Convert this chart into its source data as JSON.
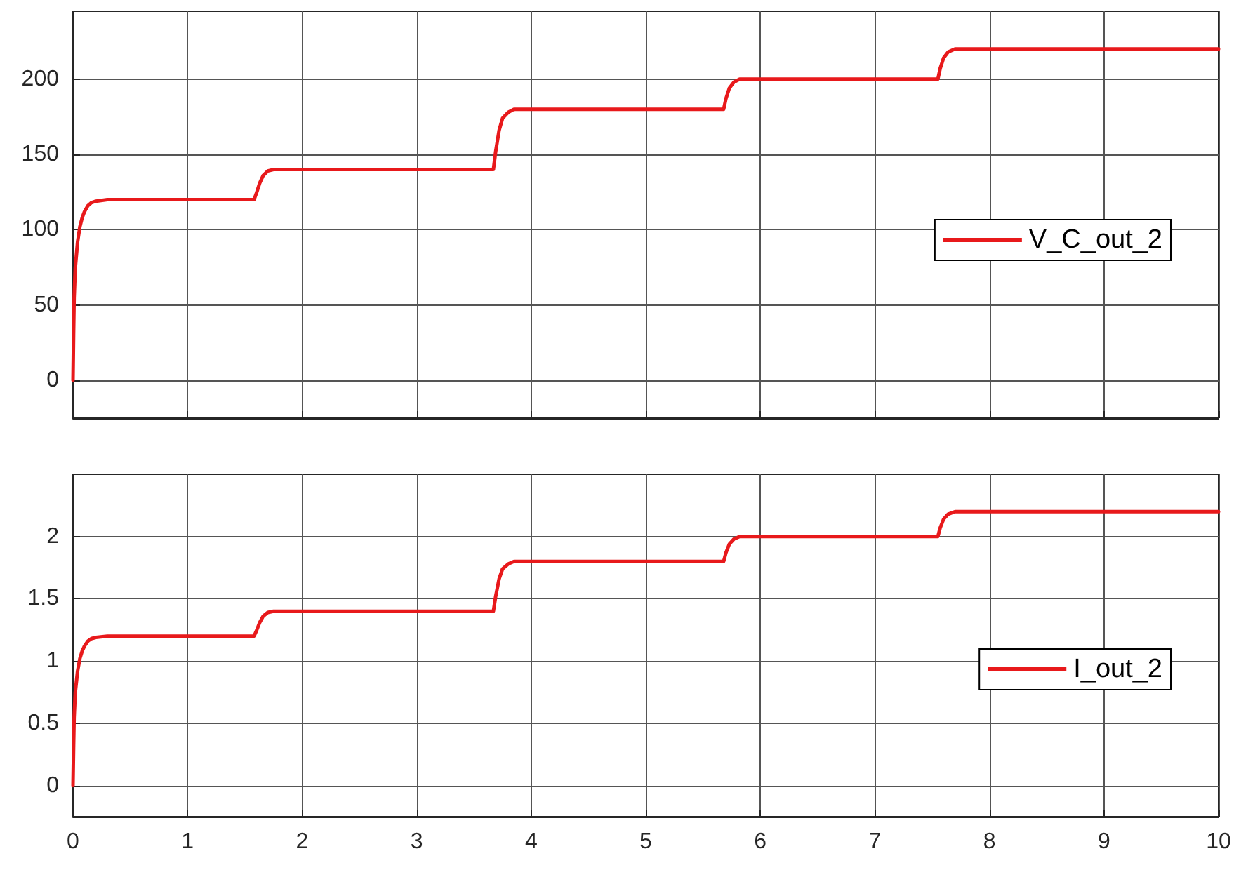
{
  "chart_data": [
    {
      "type": "line",
      "x": [
        0,
        0.005,
        0.01,
        0.02,
        0.04,
        0.06,
        0.08,
        0.1,
        0.13,
        0.16,
        0.2,
        0.3,
        0.5,
        1,
        1.5,
        1.58,
        1.6,
        1.63,
        1.66,
        1.7,
        1.75,
        1.85,
        2.5,
        3,
        3.5,
        3.67,
        3.69,
        3.72,
        3.75,
        3.8,
        3.85,
        3.95,
        4.5,
        5,
        5.5,
        5.68,
        5.7,
        5.73,
        5.77,
        5.82,
        5.9,
        6.5,
        7,
        7.55,
        7.57,
        7.6,
        7.64,
        7.7,
        7.8,
        8.5,
        9,
        10
      ],
      "series": [
        {
          "name": "V_C_out_2",
          "color": "#e8191b",
          "values": [
            0,
            30,
            55,
            75,
            92,
            102,
            108,
            112,
            116,
            118,
            119,
            120,
            120,
            120,
            120,
            120,
            124,
            131,
            136,
            139,
            140,
            140,
            140,
            140,
            140,
            140,
            152,
            166,
            174,
            178,
            180,
            180,
            180,
            180,
            180,
            180,
            187,
            194,
            198,
            200,
            200,
            200,
            200,
            200,
            207,
            214,
            218,
            220,
            220,
            220,
            220,
            220
          ]
        }
      ],
      "xlim": [
        0,
        10
      ],
      "xticks": [
        0,
        1,
        2,
        3,
        4,
        5,
        6,
        7,
        8,
        9,
        10
      ],
      "ylim": [
        -25,
        245
      ],
      "yticks": [
        0,
        50,
        100,
        150,
        200
      ],
      "grid": true,
      "legend": "right",
      "tick_labels": "y",
      "marker": "none",
      "line_style": "solid"
    },
    {
      "type": "line",
      "x": [
        0,
        0.005,
        0.01,
        0.02,
        0.04,
        0.06,
        0.08,
        0.1,
        0.13,
        0.16,
        0.2,
        0.3,
        0.5,
        1,
        1.5,
        1.58,
        1.6,
        1.63,
        1.66,
        1.7,
        1.75,
        1.85,
        2.5,
        3,
        3.5,
        3.67,
        3.69,
        3.72,
        3.75,
        3.8,
        3.85,
        3.95,
        4.5,
        5,
        5.5,
        5.68,
        5.7,
        5.73,
        5.77,
        5.82,
        5.9,
        6.5,
        7,
        7.55,
        7.57,
        7.6,
        7.64,
        7.7,
        7.8,
        8.5,
        9,
        10
      ],
      "series": [
        {
          "name": "I_out_2",
          "color": "#e8191b",
          "values": [
            0,
            0.3,
            0.55,
            0.75,
            0.92,
            1.02,
            1.08,
            1.12,
            1.16,
            1.18,
            1.19,
            1.2,
            1.2,
            1.2,
            1.2,
            1.2,
            1.24,
            1.31,
            1.36,
            1.39,
            1.4,
            1.4,
            1.4,
            1.4,
            1.4,
            1.4,
            1.52,
            1.66,
            1.74,
            1.78,
            1.8,
            1.8,
            1.8,
            1.8,
            1.8,
            1.8,
            1.87,
            1.94,
            1.98,
            2,
            2,
            2,
            2,
            2,
            2.07,
            2.14,
            2.18,
            2.2,
            2.2,
            2.2,
            2.2,
            2.2
          ]
        }
      ],
      "xlim": [
        0,
        10
      ],
      "xticks": [
        0,
        1,
        2,
        3,
        4,
        5,
        6,
        7,
        8,
        9,
        10
      ],
      "ylim": [
        -0.25,
        2.5
      ],
      "yticks": [
        0,
        0.5,
        1,
        1.5,
        2
      ],
      "grid": true,
      "legend": "right",
      "marker": "none",
      "line_style": "solid"
    }
  ]
}
